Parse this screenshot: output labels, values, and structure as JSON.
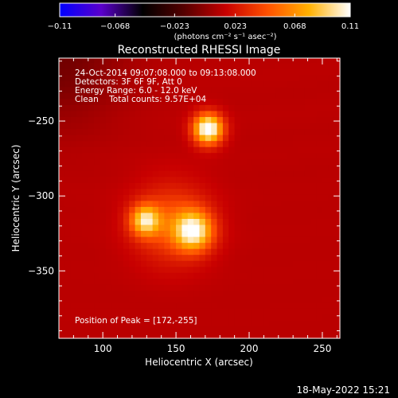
{
  "chart_data": {
    "type": "heatmap",
    "title": "Reconstructed RHESSI Image",
    "xlabel": "Heliocentric X (arcsec)",
    "ylabel": "Heliocentric Y (arcsec)",
    "xlim": [
      70,
      262
    ],
    "ylim": [
      -395,
      -208
    ],
    "x_ticks": [
      100,
      150,
      200,
      250
    ],
    "y_ticks": [
      -250,
      -300,
      -350
    ],
    "x_tick_labels": [
      "100",
      "150",
      "200",
      "250"
    ],
    "y_tick_labels": [
      "−250",
      "−300",
      "−350"
    ],
    "colorbar": {
      "range": [
        -0.11,
        0.11
      ],
      "ticks": [
        -0.11,
        -0.068,
        -0.023,
        0.023,
        0.068,
        0.11
      ],
      "tick_labels": [
        "−0.11",
        "−0.068",
        "−0.023",
        "0.023",
        "0.068",
        "0.11"
      ],
      "unit_label": "(photons cm⁻² s⁻¹ asec⁻²)",
      "colormap": "rhessi-red-temperature",
      "palette": [
        "#0000ff",
        "#5a00cc",
        "#000000",
        "#550000",
        "#c80000",
        "#ff5000",
        "#ffb000",
        "#ffffff"
      ]
    },
    "annotations": [
      "24-Oct-2014 09:07:08.000 to 09:13:08.000",
      "Detectors: 3F 6F 9F, Att 0",
      "Energy Range: 6.0 - 12.0 keV",
      "Clean    Total counts: 9.57E+04"
    ],
    "peak_label": "Position of Peak = [172,-255]",
    "sources": [
      {
        "x": 172,
        "y": -255,
        "peak": 0.11,
        "sigma": 7
      },
      {
        "x": 162,
        "y": -323,
        "peak": 0.085,
        "sigma": 9
      },
      {
        "x": 129,
        "y": -316,
        "peak": 0.075,
        "sigma": 7
      },
      {
        "x": 147,
        "y": -318,
        "peak": 0.035,
        "sigma": 18
      }
    ],
    "background_level": 0.012
  },
  "footer": {
    "date": "18-May-2022 15:21"
  }
}
